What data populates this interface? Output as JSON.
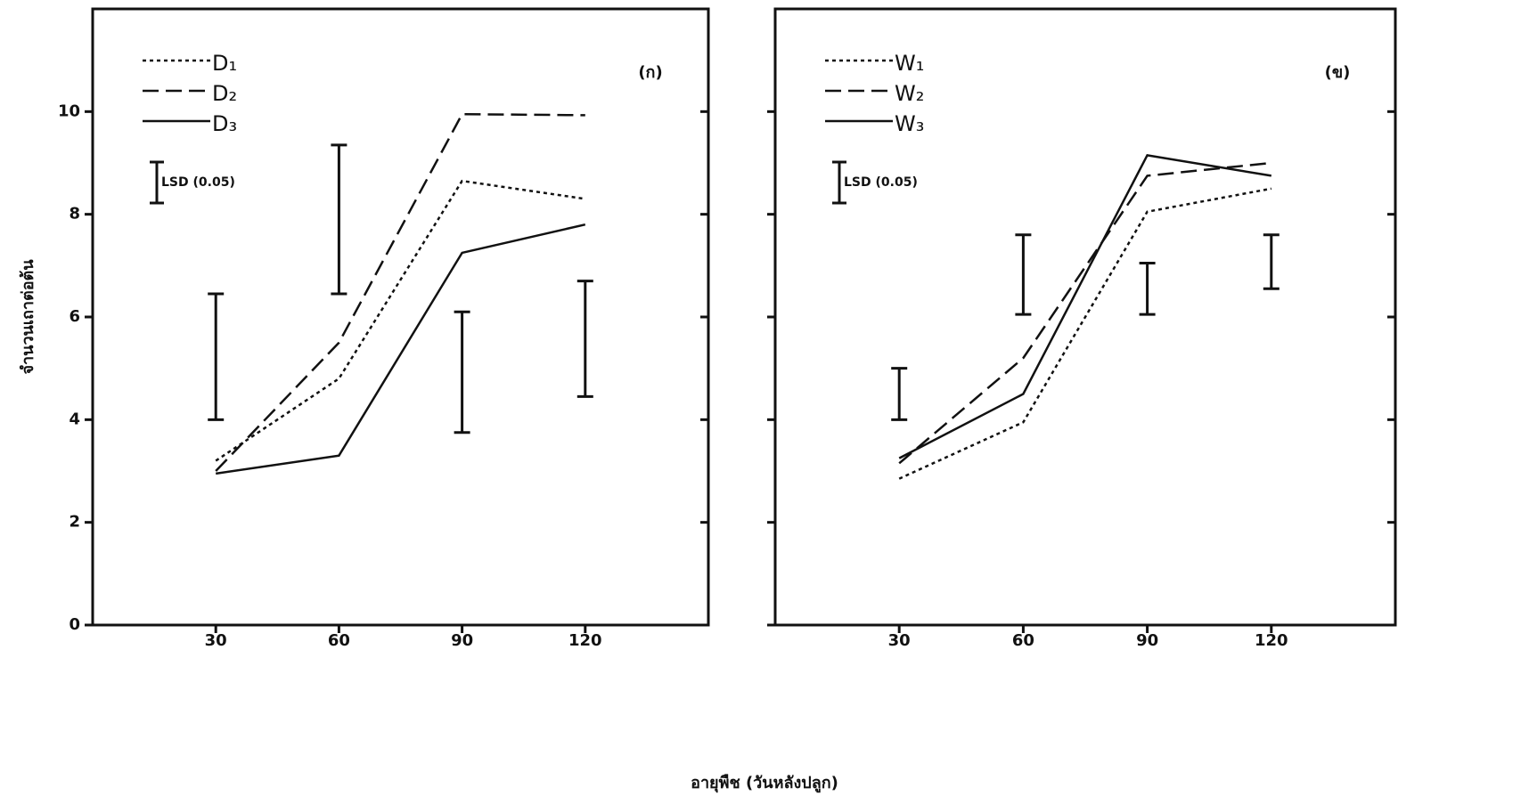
{
  "chart_data": [
    {
      "type": "line",
      "panel_label": "(ก)",
      "ylabel": "จำนวนเถาต่อต้น",
      "xlabel": "อายุพืช (วันหลังปลูก)",
      "xlim": [
        0,
        150
      ],
      "xticks": [
        30,
        60,
        90,
        120
      ],
      "ylim": [
        0,
        12
      ],
      "yticks": [
        0,
        2,
        4,
        6,
        8,
        10
      ],
      "x": [
        30,
        60,
        90,
        120
      ],
      "series": [
        {
          "name": "D₁",
          "color": "#111",
          "style": "dotted",
          "values": [
            3.2,
            4.8,
            8.65,
            8.3
          ]
        },
        {
          "name": "D₂",
          "color": "#111",
          "style": "dashed",
          "values": [
            3.0,
            5.5,
            9.95,
            9.93
          ]
        },
        {
          "name": "D₃",
          "color": "#111",
          "style": "solid",
          "values": [
            2.95,
            3.3,
            7.25,
            7.8
          ]
        }
      ],
      "lsd_label": "LSD (0.05)",
      "lsd_low": [
        4.0,
        6.45,
        3.75,
        4.45
      ],
      "lsd_high": [
        6.45,
        9.35,
        6.1,
        6.7
      ]
    },
    {
      "type": "line",
      "panel_label": "(ข)",
      "xlim": [
        0,
        150
      ],
      "xticks": [
        30,
        60,
        90,
        120
      ],
      "ylim": [
        0,
        12
      ],
      "yticks": [
        0,
        2,
        4,
        6,
        8,
        10
      ],
      "x": [
        30,
        60,
        90,
        120
      ],
      "series": [
        {
          "name": "W₁",
          "color": "#111",
          "style": "dotted",
          "values": [
            2.85,
            3.95,
            8.05,
            8.5
          ]
        },
        {
          "name": "W₂",
          "color": "#111",
          "style": "dashed",
          "values": [
            3.15,
            5.2,
            8.75,
            9.0
          ]
        },
        {
          "name": "W₃",
          "color": "#111",
          "style": "solid",
          "values": [
            3.25,
            4.5,
            9.15,
            8.75
          ]
        }
      ],
      "lsd_label": "LSD (0.05)",
      "lsd_low": [
        4.0,
        6.05,
        6.05,
        6.55
      ],
      "lsd_high": [
        5.0,
        7.6,
        7.05,
        7.6
      ]
    }
  ]
}
